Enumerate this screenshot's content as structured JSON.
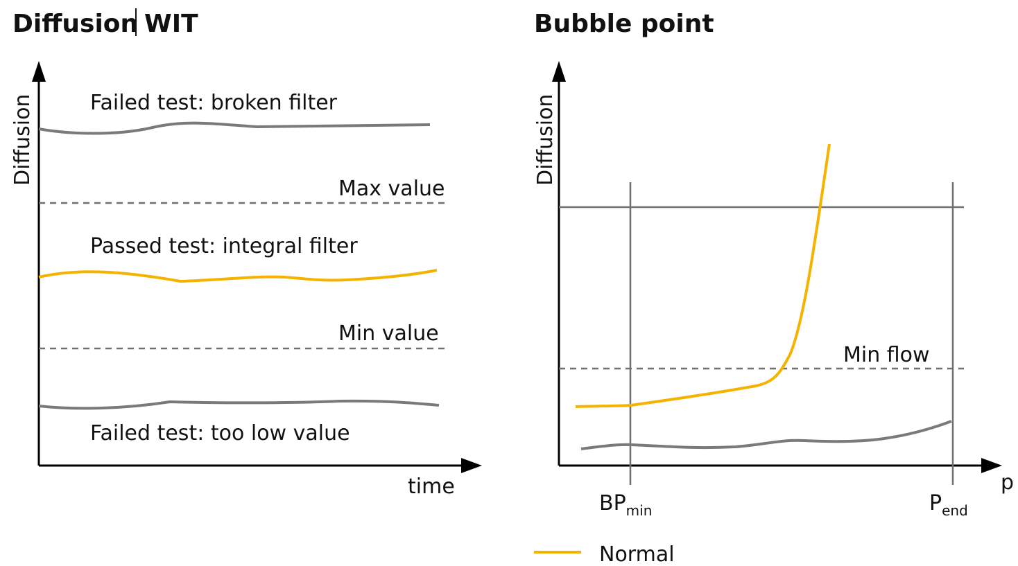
{
  "left_panel": {
    "title_part1": "Diffusion",
    "title_part2": "WIT",
    "y_label": "Diffusion",
    "x_label": "time",
    "curves": {
      "broken": "Failed test: broken filter",
      "integral": "Passed test: integral filter",
      "low": "Failed test: too low value"
    },
    "max_label": "Max value",
    "min_label": "Min value"
  },
  "right_panel": {
    "title": "Bubble point",
    "y_label": "Diffusion",
    "x_label": "p",
    "min_flow_label": "Min flow",
    "bp_min": {
      "main": "BP",
      "sub": "min"
    },
    "p_end": {
      "main": "P",
      "sub": "end"
    },
    "legend": {
      "normal": "Normal"
    }
  },
  "colors": {
    "normal": "#f5b300",
    "failed": "#7a7a7c"
  }
}
